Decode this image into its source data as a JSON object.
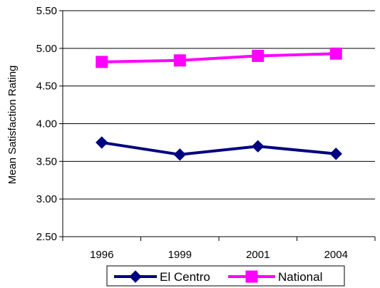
{
  "chart_data": {
    "type": "line",
    "title": "",
    "xlabel": "",
    "ylabel": "Mean Satisfaction Rating",
    "categories": [
      "1996",
      "1999",
      "2001",
      "2004"
    ],
    "ylim": [
      2.5,
      5.5
    ],
    "y_ticks": [
      "2.50",
      "3.00",
      "3.50",
      "4.00",
      "4.50",
      "5.00",
      "5.50"
    ],
    "grid": "horizontal",
    "legend_position": "bottom",
    "series": [
      {
        "name": "El Centro",
        "values": [
          3.75,
          3.59,
          3.7,
          3.6
        ],
        "color": "#000080",
        "marker": "diamond"
      },
      {
        "name": "National",
        "values": [
          4.82,
          4.84,
          4.9,
          4.93
        ],
        "color": "#FF00FF",
        "marker": "square"
      }
    ]
  }
}
